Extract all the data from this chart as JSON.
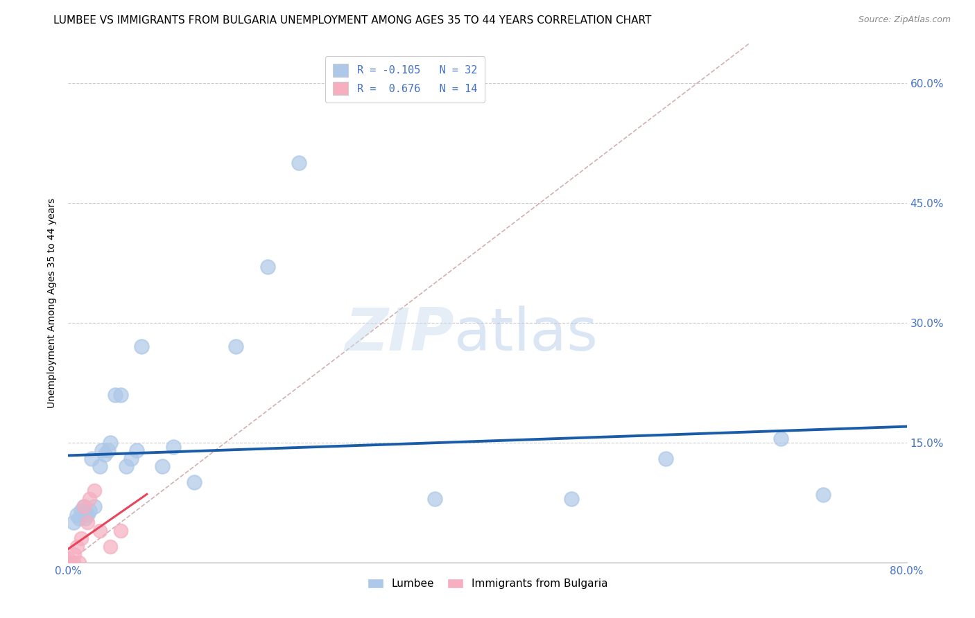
{
  "title": "LUMBEE VS IMMIGRANTS FROM BULGARIA UNEMPLOYMENT AMONG AGES 35 TO 44 YEARS CORRELATION CHART",
  "source": "Source: ZipAtlas.com",
  "ylabel": "Unemployment Among Ages 35 to 44 years",
  "xlim": [
    0.0,
    0.8
  ],
  "ylim": [
    0.0,
    0.65
  ],
  "background_color": "#ffffff",
  "watermark_zip": "ZIP",
  "watermark_atlas": "atlas",
  "lumbee_R": -0.105,
  "lumbee_N": 32,
  "bulgaria_R": 0.676,
  "bulgaria_N": 14,
  "lumbee_color": "#adc8e8",
  "lumbee_edge_color": "#adc8e8",
  "lumbee_line_color": "#1a5ca8",
  "bulgaria_color": "#f5afc0",
  "bulgaria_edge_color": "#f5afc0",
  "bulgaria_line_color": "#e8455a",
  "diagonal_color": "#d0b0b0",
  "grid_color": "#cccccc",
  "tick_color": "#4472c4",
  "title_fontsize": 11,
  "axis_label_fontsize": 10,
  "tick_fontsize": 11,
  "lumbee_x": [
    0.005,
    0.008,
    0.01,
    0.012,
    0.015,
    0.016,
    0.018,
    0.02,
    0.022,
    0.025,
    0.03,
    0.032,
    0.035,
    0.038,
    0.04,
    0.045,
    0.05,
    0.055,
    0.06,
    0.065,
    0.07,
    0.09,
    0.1,
    0.12,
    0.16,
    0.19,
    0.22,
    0.35,
    0.48,
    0.57,
    0.68,
    0.72
  ],
  "lumbee_y": [
    0.05,
    0.06,
    0.055,
    0.065,
    0.07,
    0.055,
    0.06,
    0.065,
    0.13,
    0.07,
    0.12,
    0.14,
    0.135,
    0.14,
    0.15,
    0.21,
    0.21,
    0.12,
    0.13,
    0.14,
    0.27,
    0.12,
    0.145,
    0.1,
    0.27,
    0.37,
    0.5,
    0.08,
    0.08,
    0.13,
    0.155,
    0.085
  ],
  "bulgaria_x": [
    0.0,
    0.0,
    0.005,
    0.006,
    0.008,
    0.01,
    0.012,
    0.015,
    0.018,
    0.02,
    0.025,
    0.03,
    0.04,
    0.05
  ],
  "bulgaria_y": [
    0.0,
    0.005,
    0.0,
    0.01,
    0.02,
    0.0,
    0.03,
    0.07,
    0.05,
    0.08,
    0.09,
    0.04,
    0.02,
    0.04
  ]
}
